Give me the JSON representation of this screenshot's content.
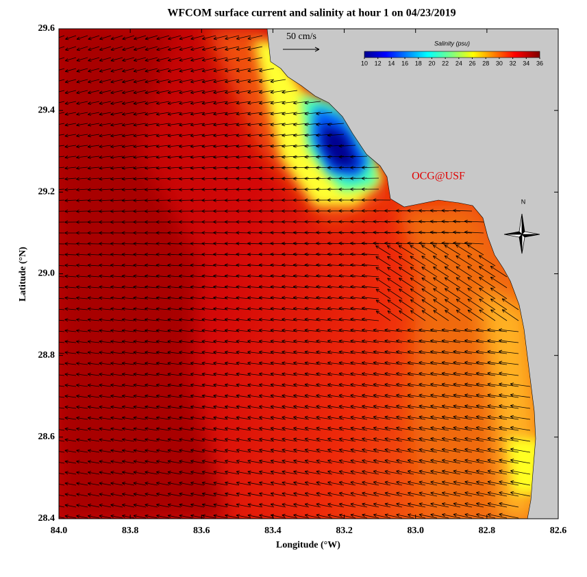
{
  "chart_data": {
    "type": "map",
    "title": "WFCOM surface current and salinity at hour 1 on 04/23/2019",
    "x_label": "Longitude (°W)",
    "y_label": "Latitude (°N)",
    "xlim": [
      84.0,
      82.6
    ],
    "xticks": [
      {
        "value": 84.0,
        "label": "84.0"
      },
      83.8,
      83.6,
      83.4,
      83.2,
      {
        "value": 83.0,
        "label": "83.0"
      },
      82.8,
      82.6
    ],
    "ylim": [
      28.4,
      29.6
    ],
    "yticks": [
      28.4,
      28.6,
      28.8,
      {
        "value": 29.0,
        "label": "29.0"
      },
      29.2,
      29.4,
      29.6
    ],
    "colorbar": {
      "label": "Salinity (psu)",
      "lim": [
        10,
        36
      ],
      "ticks": [
        10,
        12,
        14,
        16,
        18,
        20,
        22,
        24,
        26,
        28,
        30,
        32,
        34,
        36
      ]
    },
    "scale_label": "50 cm/s",
    "credit": "OCG@USF",
    "compass_label": "N"
  }
}
